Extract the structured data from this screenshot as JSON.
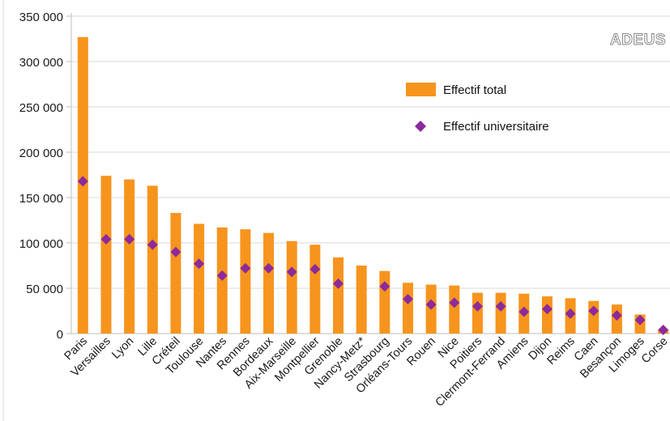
{
  "brand": "ADEUS",
  "colors": {
    "bar": "#f7941d",
    "marker": "#8b2a9b",
    "axis": "#bfbfbf",
    "grid": "#d9d9d9"
  },
  "legend": {
    "total": "Effectif total",
    "universitaire": "Effectif universitaire"
  },
  "chart_data": {
    "type": "bar",
    "categories": [
      "Paris",
      "Versailles",
      "Lyon",
      "Lille",
      "Créteil",
      "Toulouse",
      "Nantes",
      "Rennes",
      "Bordeaux",
      "Aix-Marseille",
      "Montpellier",
      "Grenoble",
      "Nancy-Metz*",
      "Strasbourg",
      "Orléans-Tours",
      "Rouen",
      "Nice",
      "Poitiers",
      "Clermont-Ferrand",
      "Amiens",
      "Dijon",
      "Reims",
      "Caen",
      "Besançon",
      "Limoges",
      "Corse"
    ],
    "series": [
      {
        "name": "Effectif total",
        "kind": "bar",
        "values": [
          327000,
          174000,
          170000,
          163000,
          133000,
          121000,
          117000,
          115000,
          111000,
          102000,
          98000,
          84000,
          75000,
          69000,
          56000,
          54000,
          53000,
          45000,
          45000,
          44000,
          41000,
          39000,
          36000,
          32000,
          21000,
          4000
        ]
      },
      {
        "name": "Effectif universitaire",
        "kind": "marker",
        "values": [
          168000,
          104000,
          104000,
          98000,
          90000,
          77000,
          64000,
          72000,
          72000,
          68000,
          71000,
          55000,
          null,
          52000,
          38000,
          32000,
          34000,
          30000,
          30000,
          24000,
          27000,
          22000,
          25000,
          20000,
          15000,
          4000
        ]
      }
    ],
    "ylim": [
      0,
      350000
    ],
    "yticks": [
      0,
      50000,
      100000,
      150000,
      200000,
      250000,
      300000,
      350000
    ],
    "ytick_labels": [
      "0",
      "50 000",
      "100 000",
      "150 000",
      "200 000",
      "250 000",
      "300 000",
      "350 000"
    ],
    "legend_position": "top-right",
    "grid": true
  }
}
